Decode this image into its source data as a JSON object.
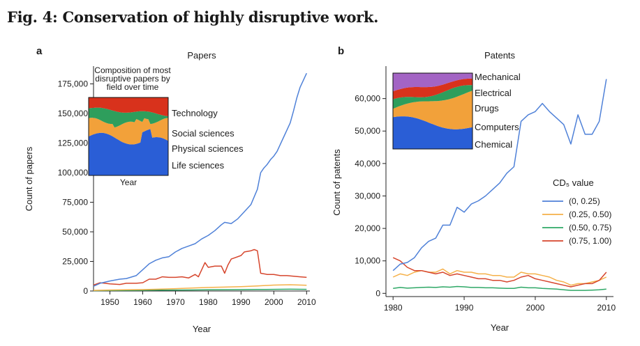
{
  "figure_title": "Fig. 4: Conservation of highly disruptive work.",
  "colors": {
    "blue": "#4f81d8",
    "orange": "#f5b048",
    "green": "#2ea866",
    "red": "#d6452c",
    "inset_blue": "#2a5ed6",
    "inset_orange": "#f2a13a",
    "inset_green": "#2e9e5c",
    "inset_red": "#d8321c",
    "inset_purple": "#a364c4"
  },
  "chart_data": [
    {
      "type": "line",
      "panel_label": "a",
      "title": "Papers",
      "xlabel": "Year",
      "ylabel": "Count of papers",
      "xlim": [
        1945,
        2011
      ],
      "ylim": [
        0,
        190000
      ],
      "xticks": [
        1950,
        1960,
        1970,
        1980,
        1990,
        2000,
        2010
      ],
      "yticks": [
        0,
        25000,
        50000,
        75000,
        100000,
        125000,
        150000,
        175000
      ],
      "ytick_labels": [
        "0",
        "25,000",
        "50,000",
        "75,000",
        "100,000",
        "125,000",
        "150,000",
        "175,000"
      ],
      "grid": false,
      "series": [
        {
          "name": "(0, 0.25)",
          "color": "#4f81d8",
          "x": [
            1945,
            1947,
            1950,
            1953,
            1955,
            1958,
            1960,
            1962,
            1964,
            1966,
            1968,
            1970,
            1972,
            1974,
            1976,
            1978,
            1980,
            1982,
            1984,
            1985,
            1987,
            1989,
            1991,
            1993,
            1995,
            1996,
            1997,
            1998,
            1999,
            2000,
            2001,
            2002,
            2003,
            2004,
            2005,
            2006,
            2007,
            2008,
            2009,
            2010
          ],
          "y": [
            4000,
            6500,
            8500,
            10000,
            10500,
            13000,
            18000,
            23000,
            26000,
            28000,
            29000,
            33000,
            36000,
            38000,
            40000,
            44000,
            47000,
            51000,
            56000,
            58000,
            57000,
            61000,
            67000,
            73000,
            86000,
            100000,
            104000,
            107000,
            111000,
            114000,
            118000,
            124000,
            130000,
            136000,
            142000,
            152000,
            163000,
            172000,
            178000,
            184000
          ]
        },
        {
          "name": "(0.25, 0.50)",
          "color": "#f5b048",
          "x": [
            1945,
            1950,
            1955,
            1960,
            1965,
            1970,
            1975,
            1980,
            1985,
            1990,
            1995,
            2000,
            2005,
            2010
          ],
          "y": [
            500,
            800,
            1000,
            1200,
            1500,
            2000,
            2500,
            3000,
            3300,
            3700,
            4300,
            5000,
            5300,
            4800
          ]
        },
        {
          "name": "(0.50, 0.75)",
          "color": "#2ea866",
          "x": [
            1945,
            1950,
            1955,
            1960,
            1965,
            1970,
            1975,
            1980,
            1985,
            1990,
            1995,
            2000,
            2005,
            2010
          ],
          "y": [
            300,
            400,
            500,
            600,
            700,
            800,
            900,
            1000,
            1100,
            1200,
            1300,
            1400,
            1500,
            1400
          ]
        },
        {
          "name": "(0.75, 1.00)",
          "color": "#d6452c",
          "x": [
            1945,
            1947,
            1950,
            1953,
            1955,
            1958,
            1960,
            1962,
            1964,
            1965,
            1966,
            1968,
            1970,
            1972,
            1974,
            1976,
            1977,
            1978,
            1979,
            1980,
            1982,
            1984,
            1985,
            1986,
            1987,
            1988,
            1990,
            1991,
            1993,
            1994,
            1995,
            1996,
            1998,
            2000,
            2002,
            2004,
            2006,
            2008,
            2010
          ],
          "y": [
            5000,
            7000,
            6000,
            5500,
            6500,
            6500,
            7000,
            10000,
            10000,
            11000,
            12000,
            11500,
            11500,
            12000,
            11000,
            14000,
            12000,
            18000,
            24000,
            20000,
            21000,
            21000,
            15000,
            22000,
            27000,
            28000,
            30000,
            33000,
            34000,
            35000,
            34000,
            15000,
            14000,
            14000,
            13000,
            13000,
            12500,
            12000,
            11500
          ]
        }
      ],
      "inset": {
        "type": "area",
        "title_lines": [
          "Composition of most",
          "disruptive papers by",
          "field over time"
        ],
        "xlabel": "Year",
        "layers": [
          {
            "name": "Life sciences",
            "color": "#2a5ed6"
          },
          {
            "name": "Physical sciences",
            "color": "#f2a13a"
          },
          {
            "name": "Social sciences",
            "color": "#2e9e5c"
          },
          {
            "name": "Technology",
            "color": "#d8321c"
          }
        ]
      }
    },
    {
      "type": "line",
      "panel_label": "b",
      "title": "Patents",
      "xlabel": "Year",
      "ylabel": "Count of patents",
      "xlim": [
        1979,
        2011
      ],
      "ylim": [
        -1000,
        70000
      ],
      "xticks": [
        1980,
        1990,
        2000,
        2010
      ],
      "yticks": [
        0,
        10000,
        20000,
        30000,
        40000,
        50000,
        60000
      ],
      "ytick_labels": [
        "0",
        "10,000",
        "20,000",
        "30,000",
        "40,000",
        "50,000",
        "60,000"
      ],
      "grid": false,
      "legend": {
        "title": "CD₅ value",
        "position": "right"
      },
      "series": [
        {
          "name": "(0, 0.25)",
          "color": "#4f81d8",
          "x": [
            1980,
            1981,
            1982,
            1983,
            1984,
            1985,
            1986,
            1987,
            1988,
            1989,
            1990,
            1991,
            1992,
            1993,
            1994,
            1995,
            1996,
            1997,
            1998,
            1999,
            2000,
            2001,
            2002,
            2003,
            2004,
            2005,
            2006,
            2007,
            2008,
            2009,
            2010
          ],
          "y": [
            7000,
            9000,
            9500,
            11000,
            14000,
            16000,
            17000,
            21000,
            21000,
            26500,
            25000,
            27500,
            28500,
            30000,
            32000,
            34000,
            37000,
            39000,
            53000,
            55000,
            56000,
            58500,
            56000,
            54000,
            52000,
            46000,
            55000,
            49000,
            49000,
            53000,
            66000
          ]
        },
        {
          "name": "(0.25, 0.50)",
          "color": "#f5b048",
          "x": [
            1980,
            1981,
            1982,
            1983,
            1984,
            1985,
            1986,
            1987,
            1988,
            1989,
            1990,
            1991,
            1992,
            1993,
            1994,
            1995,
            1996,
            1997,
            1998,
            1999,
            2000,
            2001,
            2002,
            2003,
            2004,
            2005,
            2006,
            2007,
            2008,
            2009,
            2010
          ],
          "y": [
            5000,
            6000,
            5500,
            6500,
            7000,
            6500,
            6500,
            7500,
            6000,
            7000,
            6500,
            6500,
            6000,
            6000,
            5500,
            5500,
            5000,
            5000,
            6500,
            6000,
            6000,
            5500,
            5000,
            4000,
            3500,
            2500,
            3000,
            3000,
            3500,
            4000,
            5000
          ]
        },
        {
          "name": "(0.50, 0.75)",
          "color": "#2ea866",
          "x": [
            1980,
            1981,
            1982,
            1983,
            1984,
            1985,
            1986,
            1987,
            1988,
            1989,
            1990,
            1991,
            1992,
            1993,
            1994,
            1995,
            1996,
            1997,
            1998,
            1999,
            2000,
            2001,
            2002,
            2003,
            2004,
            2005,
            2006,
            2007,
            2008,
            2009,
            2010
          ],
          "y": [
            1500,
            1800,
            1600,
            1700,
            1800,
            1900,
            1800,
            2000,
            1900,
            2100,
            2000,
            1800,
            1800,
            1700,
            1700,
            1600,
            1500,
            1500,
            1900,
            1700,
            1700,
            1500,
            1400,
            1300,
            1100,
            900,
            900,
            900,
            1000,
            1100,
            1300
          ]
        },
        {
          "name": "(0.75, 1.00)",
          "color": "#d6452c",
          "x": [
            1980,
            1981,
            1982,
            1983,
            1984,
            1985,
            1986,
            1987,
            1988,
            1989,
            1990,
            1991,
            1992,
            1993,
            1994,
            1995,
            1996,
            1997,
            1998,
            1999,
            2000,
            2001,
            2002,
            2003,
            2004,
            2005,
            2006,
            2007,
            2008,
            2009,
            2010
          ],
          "y": [
            11000,
            10000,
            8000,
            7000,
            7000,
            6500,
            6000,
            6500,
            5500,
            6000,
            5500,
            5000,
            4500,
            4500,
            4000,
            4000,
            3500,
            4000,
            5000,
            5500,
            4500,
            4000,
            3500,
            3000,
            2500,
            2000,
            2500,
            3000,
            3000,
            4000,
            6500
          ]
        }
      ],
      "inset": {
        "type": "area",
        "layers": [
          {
            "name": "Chemical",
            "color": "#2a5ed6"
          },
          {
            "name": "Computers",
            "color": "#f2a13a"
          },
          {
            "name": "Drugs",
            "color": "#2e9e5c"
          },
          {
            "name": "Electrical",
            "color": "#d8321c"
          },
          {
            "name": "Mechanical",
            "color": "#a364c4"
          }
        ]
      }
    }
  ]
}
